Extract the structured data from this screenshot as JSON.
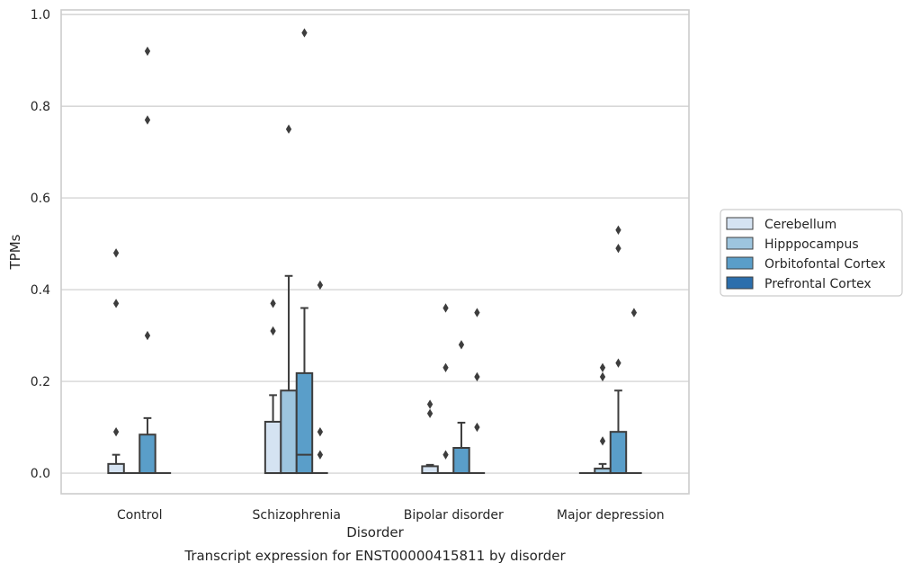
{
  "chart_data": {
    "type": "box",
    "caption": "Transcript expression for ENST00000415811 by disorder",
    "xlabel": "Disorder",
    "ylabel": "TPMs",
    "ylim": [
      -0.045,
      1.01
    ],
    "yticks": [
      "0.0",
      "0.2",
      "0.4",
      "0.6",
      "0.8",
      "1.0"
    ],
    "ytick_values": [
      0.0,
      0.2,
      0.4,
      0.6,
      0.8,
      1.0
    ],
    "grid": "horizontal",
    "legend_position": "right",
    "categories": [
      "Control",
      "Schizophrenia",
      "Bipolar disorder",
      "Major depression"
    ],
    "series": [
      {
        "name": "Cerebellum",
        "color": "#d5e3f2",
        "boxes": [
          {
            "q1": 0.0,
            "median": 0.0,
            "q3": 0.02,
            "whislo": 0.0,
            "whishi": 0.04,
            "fliers": [
              0.09,
              0.37,
              0.48
            ]
          },
          {
            "q1": 0.0,
            "median": 0.0,
            "q3": 0.112,
            "whislo": 0.0,
            "whishi": 0.17,
            "fliers": [
              0.31,
              0.37
            ]
          },
          {
            "q1": 0.0,
            "median": 0.0,
            "q3": 0.015,
            "whislo": 0.0,
            "whishi": 0.018,
            "fliers": [
              0.13,
              0.15
            ]
          },
          {
            "q1": 0.0,
            "median": 0.0,
            "q3": 0.0,
            "whislo": 0.0,
            "whishi": 0.0,
            "fliers": []
          }
        ]
      },
      {
        "name": "Hipppocampus",
        "color": "#9dc5de",
        "boxes": [
          {
            "q1": 0.0,
            "median": 0.0,
            "q3": 0.0,
            "whislo": 0.0,
            "whishi": 0.0,
            "fliers": []
          },
          {
            "q1": 0.0,
            "median": 0.0,
            "q3": 0.18,
            "whislo": 0.0,
            "whishi": 0.43,
            "fliers": [
              0.75
            ]
          },
          {
            "q1": 0.0,
            "median": 0.0,
            "q3": 0.0,
            "whislo": 0.0,
            "whishi": 0.0,
            "fliers": [
              0.04,
              0.23,
              0.36
            ]
          },
          {
            "q1": 0.0,
            "median": 0.0,
            "q3": 0.01,
            "whislo": 0.0,
            "whishi": 0.02,
            "fliers": [
              0.07,
              0.21,
              0.23
            ]
          }
        ]
      },
      {
        "name": "Orbitofontal Cortex",
        "color": "#5a9ec9",
        "boxes": [
          {
            "q1": 0.0,
            "median": 0.0,
            "q3": 0.084,
            "whislo": 0.0,
            "whishi": 0.12,
            "fliers": [
              0.3,
              0.77,
              0.92
            ]
          },
          {
            "q1": 0.0,
            "median": 0.04,
            "q3": 0.218,
            "whislo": 0.0,
            "whishi": 0.36,
            "fliers": [
              0.96
            ]
          },
          {
            "q1": 0.0,
            "median": 0.0,
            "q3": 0.055,
            "whislo": 0.0,
            "whishi": 0.11,
            "fliers": [
              0.28
            ]
          },
          {
            "q1": 0.0,
            "median": 0.0,
            "q3": 0.09,
            "whislo": 0.0,
            "whishi": 0.18,
            "fliers": [
              0.24,
              0.49,
              0.53
            ]
          }
        ]
      },
      {
        "name": "Prefrontal Cortex",
        "color": "#2b6eac",
        "boxes": [
          {
            "q1": 0.0,
            "median": 0.0,
            "q3": 0.0,
            "whislo": 0.0,
            "whishi": 0.0,
            "fliers": []
          },
          {
            "q1": 0.0,
            "median": 0.0,
            "q3": 0.0,
            "whislo": 0.0,
            "whishi": 0.0,
            "fliers": [
              0.04,
              0.09,
              0.41
            ]
          },
          {
            "q1": 0.0,
            "median": 0.0,
            "q3": 0.0,
            "whislo": 0.0,
            "whishi": 0.0,
            "fliers": [
              0.1,
              0.21,
              0.35
            ]
          },
          {
            "q1": 0.0,
            "median": 0.0,
            "q3": 0.0,
            "whislo": 0.0,
            "whishi": 0.0,
            "fliers": [
              0.35
            ]
          }
        ]
      }
    ]
  }
}
